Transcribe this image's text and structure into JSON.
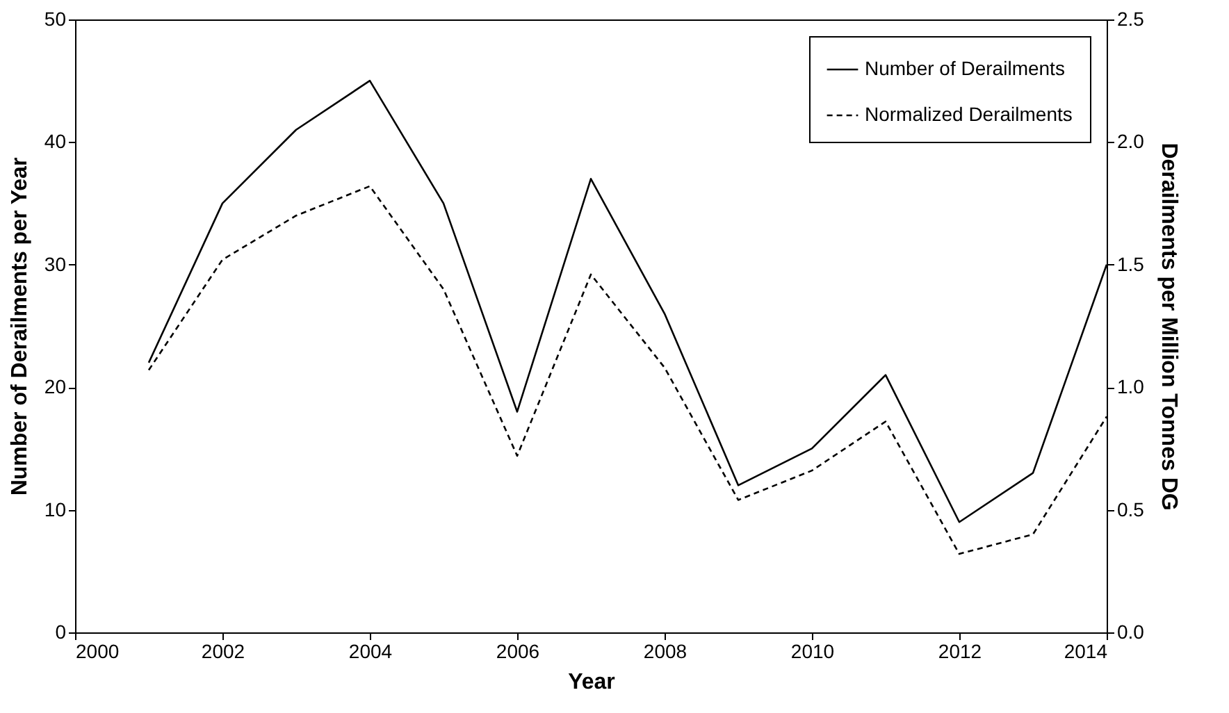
{
  "chart_data": {
    "type": "line",
    "xlabel": "Year",
    "ylabel": "Number of Derailments per Year",
    "y2label": "Derailments per Million Tonnes DG",
    "x": [
      2001,
      2002,
      2003,
      2004,
      2005,
      2006,
      2007,
      2008,
      2009,
      2010,
      2011,
      2012,
      2013,
      2014
    ],
    "series": [
      {
        "name": "Number of Derailments",
        "color": "#000000",
        "line_style": "solid",
        "values": [
          22,
          35,
          41,
          45,
          35,
          18,
          37,
          26,
          12,
          15,
          21,
          9,
          13,
          30
        ]
      },
      {
        "name": "Normalized Derailments",
        "color": "#000000",
        "line_style": "dashed",
        "axis": "y2",
        "values": [
          1.07,
          1.52,
          1.7,
          1.82,
          1.4,
          0.72,
          1.46,
          1.08,
          0.54,
          0.66,
          0.86,
          0.32,
          0.4,
          0.88
        ]
      }
    ],
    "xlim": [
      2000,
      2014
    ],
    "xticks": [
      2000,
      2002,
      2004,
      2006,
      2008,
      2010,
      2012,
      2014
    ],
    "ylim": [
      0,
      50
    ],
    "yticks": [
      0,
      10,
      20,
      30,
      40,
      50
    ],
    "y2lim": [
      0,
      2.5
    ],
    "y2ticks": [
      {
        "value": 0,
        "label": "0.0"
      },
      {
        "value": 0.5,
        "label": "0.5"
      },
      {
        "value": 1,
        "label": "1.0"
      },
      {
        "value": 1.5,
        "label": "1.5"
      },
      {
        "value": 2,
        "label": "2.0"
      },
      {
        "value": 2.5,
        "label": "2.5"
      }
    ],
    "legend": "top right",
    "grid": false,
    "marker": "none"
  }
}
